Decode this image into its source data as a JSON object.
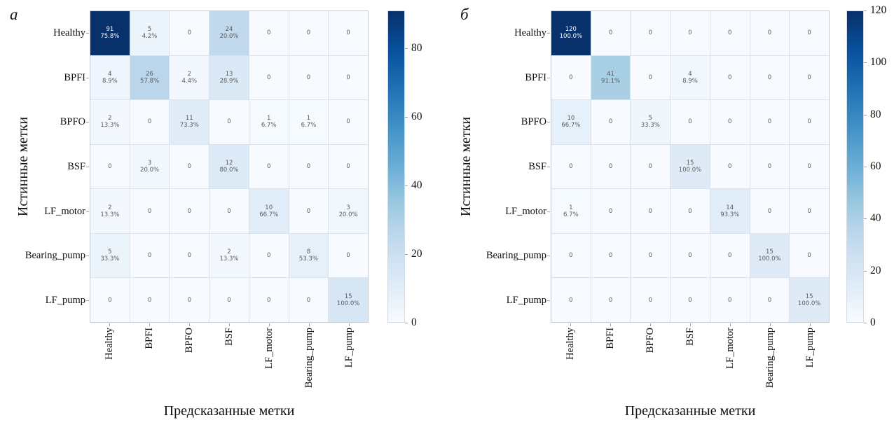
{
  "figure": {
    "xlabel": "Предсказанные метки",
    "ylabel": "Истинные метки"
  },
  "colors": {
    "colormap_name": "Blues",
    "blues_stops": [
      "#f7fbff",
      "#deebf7",
      "#c6dbef",
      "#9ecae1",
      "#6baed6",
      "#4292c6",
      "#2171b5",
      "#08519c",
      "#08306b"
    ],
    "cell_text": "#5a5a5a",
    "cell_text_on_dark": "#ffffff",
    "gridline": "#dbe2ea"
  },
  "chart_data": [
    {
      "type": "heatmap",
      "panel_label": "а",
      "xlabel": "Предсказанные метки",
      "ylabel": "Истинные метки",
      "x_categories": [
        "Healthy",
        "BPFI",
        "BPFO",
        "BSF",
        "LF_motor",
        "Bearing_pump",
        "LF_pump"
      ],
      "y_categories": [
        "Healthy",
        "BPFI",
        "BPFO",
        "BSF",
        "LF_motor",
        "Bearing_pump",
        "LF_pump"
      ],
      "vmin": 0,
      "vmax": 91,
      "colorbar_ticks": [
        0,
        20,
        40,
        60,
        80
      ],
      "counts": [
        [
          91,
          5,
          0,
          24,
          0,
          0,
          0
        ],
        [
          4,
          26,
          2,
          13,
          0,
          0,
          0
        ],
        [
          2,
          0,
          11,
          0,
          1,
          1,
          0
        ],
        [
          0,
          3,
          0,
          12,
          0,
          0,
          0
        ],
        [
          2,
          0,
          0,
          0,
          10,
          0,
          3
        ],
        [
          5,
          0,
          0,
          2,
          0,
          8,
          0
        ],
        [
          0,
          0,
          0,
          0,
          0,
          0,
          15
        ]
      ],
      "percent_labels": [
        [
          "75.8%",
          "4.2%",
          "",
          "20.0%",
          "",
          "",
          ""
        ],
        [
          "8.9%",
          "57.8%",
          "4.4%",
          "28.9%",
          "",
          "",
          ""
        ],
        [
          "13.3%",
          "",
          "73.3%",
          "",
          "6.7%",
          "6.7%",
          ""
        ],
        [
          "",
          "20.0%",
          "",
          "80.0%",
          "",
          "",
          ""
        ],
        [
          "13.3%",
          "",
          "",
          "",
          "66.7%",
          "",
          "20.0%"
        ],
        [
          "33.3%",
          "",
          "",
          "13.3%",
          "",
          "53.3%",
          ""
        ],
        [
          "",
          "",
          "",
          "",
          "",
          "",
          "100.0%"
        ]
      ]
    },
    {
      "type": "heatmap",
      "panel_label": "б",
      "xlabel": "Предсказанные метки",
      "ylabel": "Истинные метки",
      "x_categories": [
        "Healthy",
        "BPFI",
        "BPFO",
        "BSF",
        "LF_motor",
        "Bearing_pump",
        "LF_pump"
      ],
      "y_categories": [
        "Healthy",
        "BPFI",
        "BPFO",
        "BSF",
        "LF_motor",
        "Bearing_pump",
        "LF_pump"
      ],
      "vmin": 0,
      "vmax": 120,
      "colorbar_ticks": [
        0,
        20,
        40,
        60,
        80,
        100,
        120
      ],
      "counts": [
        [
          120,
          0,
          0,
          0,
          0,
          0,
          0
        ],
        [
          0,
          41,
          0,
          4,
          0,
          0,
          0
        ],
        [
          10,
          0,
          5,
          0,
          0,
          0,
          0
        ],
        [
          0,
          0,
          0,
          15,
          0,
          0,
          0
        ],
        [
          1,
          0,
          0,
          0,
          14,
          0,
          0
        ],
        [
          0,
          0,
          0,
          0,
          0,
          15,
          0
        ],
        [
          0,
          0,
          0,
          0,
          0,
          0,
          15
        ]
      ],
      "percent_labels": [
        [
          "100.0%",
          "",
          "",
          "",
          "",
          "",
          ""
        ],
        [
          "",
          "91.1%",
          "",
          "8.9%",
          "",
          "",
          ""
        ],
        [
          "66.7%",
          "",
          "33.3%",
          "",
          "",
          "",
          ""
        ],
        [
          "",
          "",
          "",
          "100.0%",
          "",
          "",
          ""
        ],
        [
          "6.7%",
          "",
          "",
          "",
          "93.3%",
          "",
          ""
        ],
        [
          "",
          "",
          "",
          "",
          "",
          "100.0%",
          ""
        ],
        [
          "",
          "",
          "",
          "",
          "",
          "",
          "100.0%"
        ]
      ]
    }
  ]
}
